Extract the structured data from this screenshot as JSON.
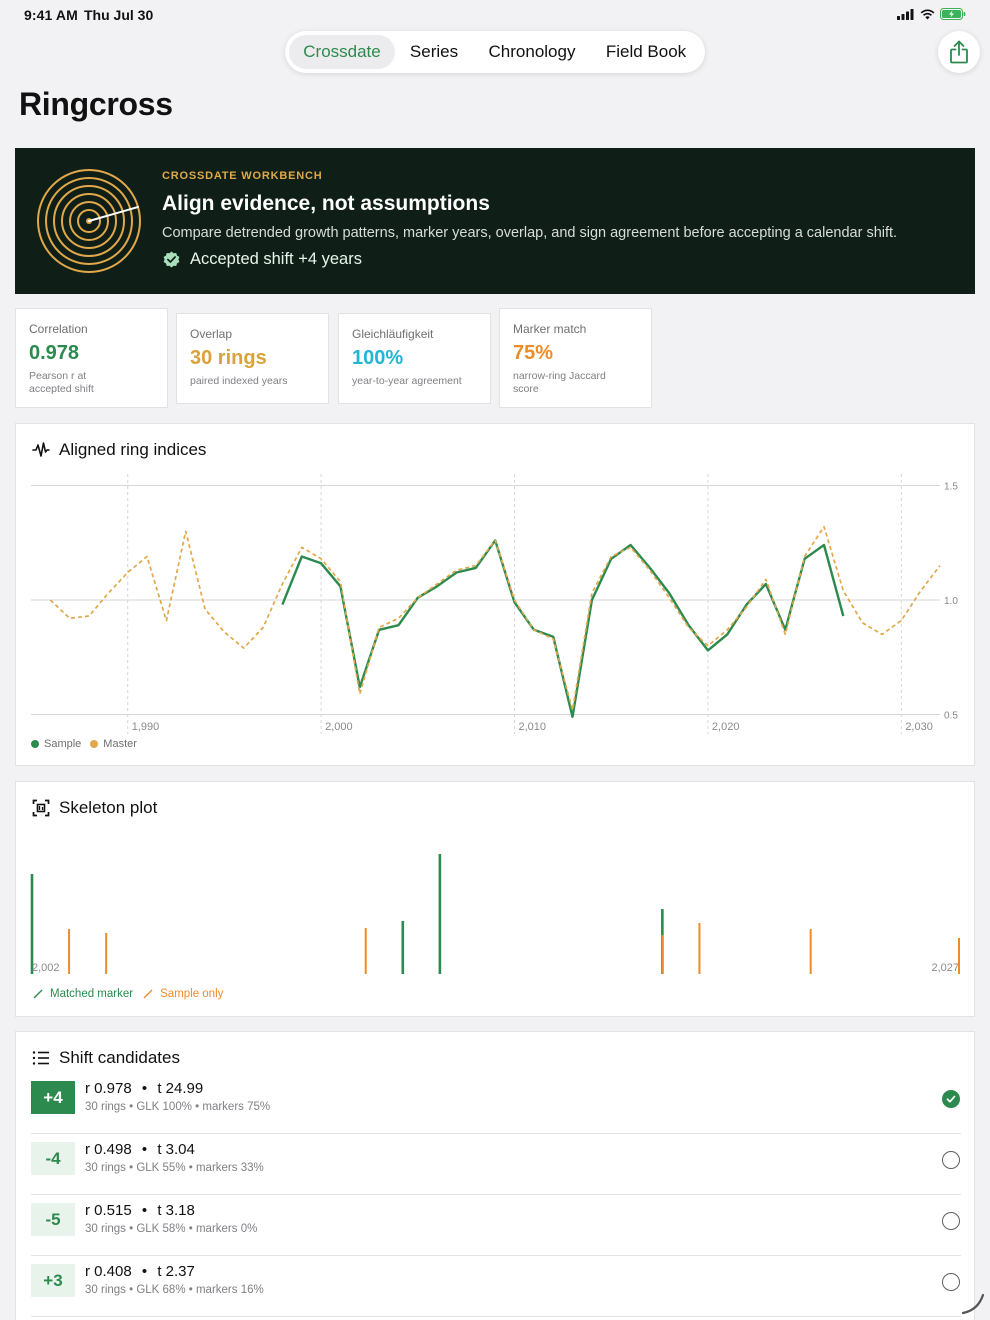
{
  "status": {
    "time": "9:41 AM",
    "date": "Thu Jul 30"
  },
  "tabs": [
    {
      "label": "Crossdate",
      "active": true
    },
    {
      "label": "Series",
      "active": false
    },
    {
      "label": "Chronology",
      "active": false
    },
    {
      "label": "Field Book",
      "active": false
    }
  ],
  "page_title": "Ringcross",
  "hero": {
    "eyebrow": "CROSSDATE WORKBENCH",
    "title": "Align evidence, not assumptions",
    "description": "Compare detrended growth patterns, marker years, overlap, and sign agreement before accepting a calendar shift.",
    "accepted": "Accepted shift +4 years"
  },
  "metrics": [
    {
      "label": "Correlation",
      "value": "0.978",
      "sub": "Pearson r at accepted shift",
      "color": "#2c8a4e"
    },
    {
      "label": "Overlap",
      "value": "30 rings",
      "sub": "paired indexed years",
      "color": "#d9a23a"
    },
    {
      "label": "Gleichläufigkeit",
      "value": "100%",
      "sub": "year-to-year agreement",
      "color": "#22b5d6"
    },
    {
      "label": "Marker match",
      "value": "75%",
      "sub": "narrow-ring Jaccard score",
      "color": "#ee8c2a"
    }
  ],
  "ring_chart": {
    "title": "Aligned ring indices",
    "legend": {
      "sample": "Sample",
      "master": "Master"
    }
  },
  "chart_data": [
    {
      "type": "line",
      "title": "Aligned ring indices",
      "xlim": [
        1985,
        2032
      ],
      "ylim": [
        0.45,
        1.55
      ],
      "x_ticks": [
        1990,
        2000,
        2010,
        2020,
        2030
      ],
      "x_tick_labels": [
        "1,990",
        "2,000",
        "2,010",
        "2,020",
        "2,030"
      ],
      "y_ticks": [
        0.5,
        1.0,
        1.5
      ],
      "y_tick_labels": [
        "0.5",
        "1.0",
        "1.5"
      ],
      "grid": true,
      "legend_position": "bottom-left",
      "series": [
        {
          "name": "Sample",
          "color": "#2c8a4e",
          "x": [
            1998,
            1999,
            2000,
            2001,
            2002,
            2003,
            2004,
            2005,
            2006,
            2007,
            2008,
            2009,
            2010,
            2011,
            2012,
            2013,
            2014,
            2015,
            2016,
            2017,
            2018,
            2019,
            2020,
            2021,
            2022,
            2023,
            2024,
            2025,
            2026,
            2027
          ],
          "y": [
            0.98,
            1.19,
            1.16,
            1.06,
            0.62,
            0.87,
            0.89,
            1.01,
            1.06,
            1.12,
            1.14,
            1.26,
            0.99,
            0.87,
            0.84,
            0.49,
            1.0,
            1.18,
            1.24,
            1.14,
            1.03,
            0.89,
            0.78,
            0.85,
            0.98,
            1.07,
            0.87,
            1.18,
            1.24,
            0.93
          ]
        },
        {
          "name": "Master",
          "color": "#e0a84a",
          "x": [
            1986,
            1987,
            1988,
            1989,
            1990,
            1991,
            1992,
            1993,
            1994,
            1995,
            1996,
            1997,
            1998,
            1999,
            2000,
            2001,
            2002,
            2003,
            2004,
            2005,
            2006,
            2007,
            2008,
            2009,
            2010,
            2011,
            2012,
            2013,
            2014,
            2015,
            2016,
            2017,
            2018,
            2019,
            2020,
            2021,
            2022,
            2023,
            2024,
            2025,
            2026,
            2027,
            2028,
            2029,
            2030,
            2031,
            2032
          ],
          "y": [
            1.0,
            0.92,
            0.93,
            1.03,
            1.12,
            1.19,
            0.91,
            1.3,
            0.96,
            0.86,
            0.79,
            0.88,
            1.07,
            1.23,
            1.18,
            1.08,
            0.59,
            0.88,
            0.92,
            1.01,
            1.07,
            1.13,
            1.15,
            1.26,
            1.0,
            0.87,
            0.83,
            0.52,
            1.03,
            1.19,
            1.23,
            1.13,
            1.01,
            0.88,
            0.8,
            0.87,
            0.97,
            1.09,
            0.85,
            1.19,
            1.32,
            1.04,
            0.9,
            0.85,
            0.91,
            1.04,
            1.15
          ]
        }
      ]
    },
    {
      "type": "bar",
      "title": "Skeleton plot",
      "xlim": [
        2002,
        2027
      ],
      "x_tick_labels": [
        "2,002",
        "2,027"
      ],
      "legend_position": "bottom-left",
      "series": [
        {
          "name": "Matched marker",
          "color": "#2c8a4e",
          "x": [
            2002,
            2012,
            2013,
            2019
          ],
          "values": [
            100,
            53,
            120,
            65
          ]
        },
        {
          "name": "Sample only",
          "color": "#ee8c2a",
          "x": [
            2003,
            2004,
            2011,
            2019,
            2020,
            2023,
            2027
          ],
          "values": [
            45,
            41,
            46,
            39,
            51,
            45,
            36
          ]
        }
      ]
    }
  ],
  "skeleton": {
    "title": "Skeleton plot",
    "legend": {
      "matched": "Matched marker",
      "sample_only": "Sample only"
    }
  },
  "candidates": {
    "title": "Shift candidates",
    "items": [
      {
        "shift": "+4",
        "r": "r 0.978",
        "t": "t 24.99",
        "meta": "30 rings • GLK 100% • markers 75%",
        "selected": true
      },
      {
        "shift": "-4",
        "r": "r 0.498",
        "t": "t 3.04",
        "meta": "30 rings • GLK 55% • markers 33%",
        "selected": false
      },
      {
        "shift": "-5",
        "r": "r 0.515",
        "t": "t 3.18",
        "meta": "30 rings • GLK 58% • markers 0%",
        "selected": false
      },
      {
        "shift": "+3",
        "r": "r 0.408",
        "t": "t 2.37",
        "meta": "30 rings • GLK 68% • markers 16%",
        "selected": false
      }
    ]
  },
  "icons": {
    "share": "share-icon",
    "waveform": "waveform-icon",
    "skeleton": "viewfinder-icon",
    "list": "list-icon",
    "check": "checkmark-seal-icon"
  },
  "colors": {
    "accent_green": "#2c8a4e",
    "master_gold": "#e0a84a",
    "sample_orange": "#ee8c2a",
    "hero_bg": "#0f1f17"
  }
}
